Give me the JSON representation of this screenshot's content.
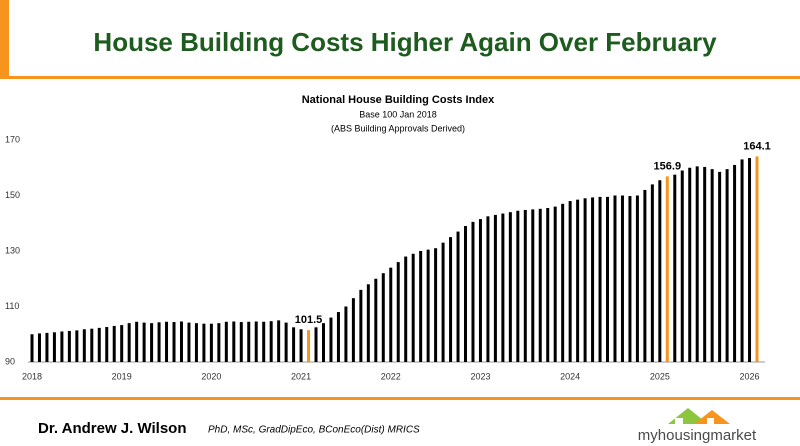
{
  "slide_title": "House Building Costs Higher Again Over February",
  "footer": {
    "author": "Dr. Andrew J. Wilson",
    "credentials": "PhD, MSc, GradDipEco, BConEco(Dist) MRICS",
    "logo": "myhousingmarket"
  },
  "chart_data": {
    "type": "bar",
    "title": "National House Building Costs Index",
    "subtitle": "Base 100 Jan 2018",
    "note": "(ABS Building Approvals Derived)",
    "categories": [
      "2018",
      null,
      null,
      null,
      null,
      null,
      null,
      null,
      null,
      null,
      null,
      null,
      "2019",
      null,
      null,
      null,
      null,
      null,
      null,
      null,
      null,
      null,
      null,
      null,
      "2020",
      null,
      null,
      null,
      null,
      null,
      null,
      null,
      null,
      null,
      null,
      null,
      "2021",
      null,
      null,
      null,
      null,
      null,
      null,
      null,
      null,
      null,
      null,
      null,
      "2022",
      null,
      null,
      null,
      null,
      null,
      null,
      null,
      null,
      null,
      null,
      null,
      "2023",
      null,
      null,
      null,
      null,
      null,
      null,
      null,
      null,
      null,
      null,
      null,
      "2024",
      null,
      null,
      null,
      null,
      null,
      null,
      null,
      null,
      null,
      null,
      null,
      "2025",
      null,
      null,
      null,
      null,
      null,
      null,
      null,
      null,
      null,
      null,
      null,
      "2026",
      null
    ],
    "values": [
      100,
      100.3,
      100.5,
      100.7,
      101,
      101.2,
      101.4,
      101.8,
      102,
      102.3,
      102.6,
      103,
      103.3,
      104,
      104.5,
      104.2,
      104,
      104.3,
      104.5,
      104.4,
      104.6,
      104.2,
      104,
      103.8,
      103.8,
      104,
      104.5,
      104.6,
      104.4,
      104.5,
      104.6,
      104.5,
      104.7,
      105,
      104.2,
      102.5,
      101.8,
      101.5,
      102.5,
      104,
      106,
      108,
      110,
      113,
      116,
      118,
      120,
      122,
      124,
      126,
      128,
      129,
      130,
      130.5,
      131,
      133,
      135,
      137,
      139,
      140.5,
      141.5,
      142.5,
      143,
      143.5,
      144,
      144.5,
      144.8,
      145,
      145.2,
      145.5,
      146,
      147,
      148,
      148.5,
      149,
      149.3,
      149.5,
      149.5,
      150,
      150,
      149.8,
      150,
      152,
      154,
      155.5,
      156.9,
      157.5,
      159,
      160,
      160.5,
      160.3,
      159.5,
      158.5,
      159.5,
      161,
      163,
      163.5,
      164.1
    ],
    "value_labels": [
      null,
      null,
      null,
      null,
      null,
      null,
      null,
      null,
      null,
      null,
      null,
      null,
      null,
      null,
      null,
      null,
      null,
      null,
      null,
      null,
      null,
      null,
      null,
      null,
      null,
      null,
      null,
      null,
      null,
      null,
      null,
      null,
      null,
      null,
      null,
      null,
      null,
      "101.5",
      null,
      null,
      null,
      null,
      null,
      null,
      null,
      null,
      null,
      null,
      null,
      null,
      null,
      null,
      null,
      null,
      null,
      null,
      null,
      null,
      null,
      null,
      null,
      null,
      null,
      null,
      null,
      null,
      null,
      null,
      null,
      null,
      null,
      null,
      null,
      null,
      null,
      null,
      null,
      null,
      null,
      null,
      null,
      null,
      null,
      null,
      null,
      "156.9",
      null,
      null,
      null,
      null,
      null,
      null,
      null,
      null,
      null,
      null,
      null,
      "164.1"
    ],
    "color": "#000000",
    "highlight_color": "#f7941d",
    "ylim": [
      90,
      170
    ],
    "yticks": [
      90,
      110,
      130,
      150,
      170
    ],
    "grid": false
  }
}
